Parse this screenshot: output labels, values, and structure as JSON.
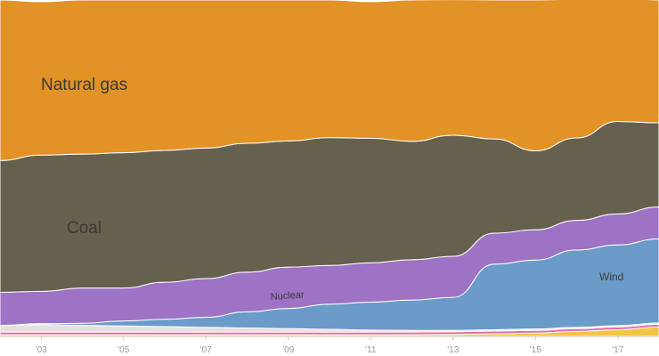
{
  "chart_data": {
    "type": "area",
    "x": [
      2002,
      2003,
      2004,
      2005,
      2006,
      2007,
      2008,
      2009,
      2010,
      2011,
      2012,
      2013,
      2014,
      2015,
      2016,
      2017,
      2018
    ],
    "x_ticks": [
      "'03",
      "'05",
      "'07",
      "'09",
      "'11",
      "'13",
      "'15",
      "'17"
    ],
    "xlim": [
      2002,
      2018
    ],
    "ylim": [
      0,
      100
    ],
    "grid": false,
    "legend": "inline labels",
    "series": [
      {
        "name": "",
        "color": "#f4c542",
        "values": [
          0.5,
          0.5,
          0.5,
          0.5,
          0.5,
          0.5,
          0.5,
          0.5,
          0.5,
          0.5,
          0.5,
          0.6,
          0.8,
          1.0,
          1.5,
          2.0,
          2.8
        ]
      },
      {
        "name": "",
        "color": "#e56aa8",
        "values": [
          0.8,
          0.8,
          0.8,
          0.8,
          0.8,
          0.8,
          0.8,
          0.8,
          0.8,
          0.8,
          0.8,
          0.8,
          0.8,
          0.8,
          0.8,
          0.8,
          0.8
        ]
      },
      {
        "name": "",
        "color": "#e2e2e2",
        "values": [
          2.0,
          2.2,
          2.0,
          1.8,
          1.6,
          1.4,
          1.2,
          1.0,
          0.8,
          0.6,
          0.5,
          0.4,
          0.4,
          0.4,
          0.4,
          0.4,
          0.4
        ]
      },
      {
        "name": "Wind",
        "color": "#6b9bc8",
        "values": [
          0.0,
          0.3,
          0.6,
          1.5,
          2.2,
          3.0,
          4.8,
          6.0,
          7.5,
          8.3,
          9.0,
          9.8,
          19.5,
          20.5,
          23.0,
          24.0,
          25.0
        ]
      },
      {
        "name": "Nuclear",
        "color": "#9e72c4",
        "values": [
          9.8,
          9.6,
          10.5,
          9.8,
          11.0,
          11.5,
          11.8,
          12.3,
          11.5,
          11.7,
          12.0,
          12.2,
          9.2,
          9.0,
          8.8,
          9.2,
          9.5
        ]
      },
      {
        "name": "Coal",
        "color": "#65614e",
        "values": [
          39.2,
          40.5,
          39.8,
          40.2,
          39.2,
          38.8,
          38.3,
          37.5,
          38.0,
          37.0,
          35.2,
          36.0,
          28.0,
          23.5,
          24.5,
          27.5,
          25.0
        ]
      },
      {
        "name": "Natural gas",
        "color": "#e39226",
        "values": [
          47.7,
          45.6,
          45.8,
          45.4,
          44.7,
          44.0,
          42.6,
          41.9,
          40.9,
          40.6,
          42.0,
          40.3,
          41.3,
          44.8,
          41.2,
          36.9,
          36.5
        ]
      }
    ],
    "labels": [
      {
        "series": "Natural gas",
        "text": "Natural gas"
      },
      {
        "series": "Coal",
        "text": "Coal"
      },
      {
        "series": "Nuclear",
        "text": "Nuclear"
      },
      {
        "series": "Wind",
        "text": "Wind"
      }
    ]
  }
}
